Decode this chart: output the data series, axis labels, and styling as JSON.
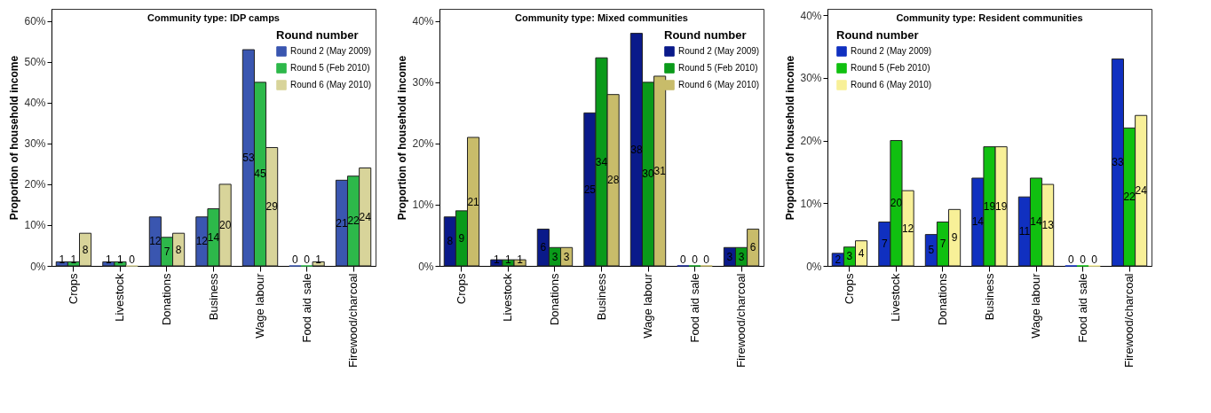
{
  "chart_data": [
    {
      "type": "bar",
      "title": "Community type: IDP camps",
      "ylabel": "Proportion of household income",
      "legend_title": "Round number",
      "legend": "top right",
      "data_labels": true,
      "categories": [
        "Crops",
        "Livestock",
        "Donations",
        "Business",
        "Wage labour",
        "Food aid sale",
        "Firewood/charcoal"
      ],
      "ylim": [
        0,
        63
      ],
      "yticks": [
        {
          "value": 0,
          "label": "0%"
        },
        {
          "value": 10,
          "label": "10%"
        },
        {
          "value": 20,
          "label": "20%"
        },
        {
          "value": 30,
          "label": "30%"
        },
        {
          "value": 40,
          "label": "40%"
        },
        {
          "value": 50,
          "label": "50%"
        },
        {
          "value": 60,
          "label": "60%"
        }
      ],
      "series": [
        {
          "name": "Round 2 (May 2009)",
          "color": "#3a56b0",
          "values": [
            1,
            1,
            12,
            12,
            53,
            0,
            21
          ]
        },
        {
          "name": "Round 5 (Feb 2010)",
          "color": "#2db84a",
          "values": [
            1,
            1,
            7,
            14,
            45,
            0,
            22
          ]
        },
        {
          "name": "Round 6 (May 2010)",
          "color": "#d8d49a",
          "values": [
            8,
            0,
            8,
            20,
            29,
            1,
            24
          ]
        }
      ]
    },
    {
      "type": "bar",
      "title": "Community type: Mixed communities",
      "ylabel": "Proportion of household income",
      "legend_title": "Round number",
      "legend": "top right",
      "data_labels": true,
      "categories": [
        "Crops",
        "Livestock",
        "Donations",
        "Business",
        "Wage labour",
        "Food aid sale",
        "Firewood/charcoal"
      ],
      "ylim": [
        0,
        42
      ],
      "yticks": [
        {
          "value": 0,
          "label": "0%"
        },
        {
          "value": 10,
          "label": "10%"
        },
        {
          "value": 20,
          "label": "20%"
        },
        {
          "value": 30,
          "label": "30%"
        },
        {
          "value": 40,
          "label": "40%"
        }
      ],
      "series": [
        {
          "name": "Round 2 (May 2009)",
          "color": "#0a1a8a",
          "values": [
            8,
            1,
            6,
            25,
            38,
            0,
            3
          ]
        },
        {
          "name": "Round 5 (Feb 2010)",
          "color": "#0a9a1a",
          "values": [
            9,
            1,
            3,
            34,
            30,
            0,
            3
          ]
        },
        {
          "name": "Round 6 (May 2010)",
          "color": "#c8bc6a",
          "values": [
            21,
            1,
            3,
            28,
            31,
            0,
            6
          ]
        }
      ]
    },
    {
      "type": "bar",
      "title": "Community type: Resident communities",
      "ylabel": "Proportion of household income",
      "legend_title": "Round number",
      "legend": "top left",
      "data_labels": true,
      "categories": [
        "Crops",
        "Livestock",
        "Donations",
        "Business",
        "Wage labour",
        "Food aid sale",
        "Firewood/charcoal"
      ],
      "ylim": [
        0,
        41
      ],
      "yticks": [
        {
          "value": 0,
          "label": "0%"
        },
        {
          "value": 10,
          "label": "10%"
        },
        {
          "value": 20,
          "label": "20%"
        },
        {
          "value": 30,
          "label": "30%"
        },
        {
          "value": 40,
          "label": "40%"
        }
      ],
      "series": [
        {
          "name": "Round 2 (May 2009)",
          "color": "#1030c0",
          "values": [
            2,
            7,
            5,
            14,
            11,
            0,
            33
          ]
        },
        {
          "name": "Round 5 (Feb 2010)",
          "color": "#10c010",
          "values": [
            3,
            20,
            7,
            19,
            14,
            0,
            22
          ]
        },
        {
          "name": "Round 6 (May 2010)",
          "color": "#f8f098",
          "values": [
            4,
            12,
            9,
            19,
            13,
            0,
            24
          ]
        }
      ]
    }
  ]
}
